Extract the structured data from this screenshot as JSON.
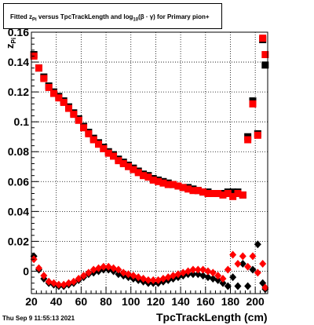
{
  "header": {
    "title_prefix": "Fitted  z",
    "title_sub_pi": "Pi",
    "title_middle": "  versus TpcTrackLength and log",
    "title_sub_10": "10",
    "title_suffix": "(β · γ) for Primary pion+"
  },
  "footer": {
    "timestamp": "Thu Sep  9 11:55:13 2021"
  },
  "colors": {
    "series_black": "#000000",
    "series_red": "#ff0000",
    "grid": "#000000",
    "frame": "#000000"
  },
  "chart_data": {
    "type": "scatter",
    "xlabel": "TpcTrackLength (cm)",
    "ylabel": "z",
    "ylabel_sub": "Pi",
    "xlim": [
      20,
      210
    ],
    "ylim": [
      -0.015,
      0.16
    ],
    "grid": true,
    "xticks": [
      20,
      40,
      60,
      80,
      100,
      120,
      140,
      160,
      180,
      200
    ],
    "yticks": [
      0,
      0.02,
      0.04,
      0.06,
      0.08,
      0.1,
      0.12,
      0.14,
      0.16
    ],
    "ytick_labels": [
      "0",
      "0.02",
      "0.04",
      "0.06",
      "0.08",
      "0.1",
      "0.12",
      "0.14",
      "0.16"
    ],
    "series": [
      {
        "marker": "square",
        "color": "black",
        "points": [
          [
            22,
            0.145
          ],
          [
            26,
            0.136
          ],
          [
            30,
            0.13
          ],
          [
            34,
            0.124
          ],
          [
            38,
            0.12
          ],
          [
            42,
            0.117
          ],
          [
            46,
            0.114
          ],
          [
            50,
            0.11
          ],
          [
            54,
            0.106
          ],
          [
            58,
            0.102
          ],
          [
            62,
            0.097
          ],
          [
            66,
            0.093
          ],
          [
            70,
            0.089
          ],
          [
            74,
            0.086
          ],
          [
            78,
            0.083
          ],
          [
            82,
            0.08
          ],
          [
            86,
            0.078
          ],
          [
            90,
            0.075
          ],
          [
            94,
            0.073
          ],
          [
            98,
            0.071
          ],
          [
            102,
            0.069
          ],
          [
            106,
            0.067
          ],
          [
            110,
            0.065
          ],
          [
            114,
            0.064
          ],
          [
            118,
            0.062
          ],
          [
            122,
            0.061
          ],
          [
            126,
            0.06
          ],
          [
            130,
            0.059
          ],
          [
            134,
            0.058
          ],
          [
            138,
            0.057
          ],
          [
            142,
            0.056
          ],
          [
            146,
            0.056
          ],
          [
            150,
            0.055
          ],
          [
            154,
            0.054
          ],
          [
            158,
            0.053
          ],
          [
            162,
            0.053
          ],
          [
            166,
            0.052
          ],
          [
            170,
            0.052
          ],
          [
            174,
            0.052
          ],
          [
            178,
            0.053
          ],
          [
            182,
            0.053
          ],
          [
            186,
            0.053
          ],
          [
            190,
            0.051
          ],
          [
            194,
            0.09
          ],
          [
            198,
            0.114
          ],
          [
            202,
            0.092
          ],
          [
            206,
            0.155
          ],
          [
            208,
            0.138
          ]
        ]
      },
      {
        "marker": "square",
        "color": "red",
        "points": [
          [
            22,
            0.144
          ],
          [
            26,
            0.136
          ],
          [
            30,
            0.129
          ],
          [
            34,
            0.123
          ],
          [
            38,
            0.119
          ],
          [
            42,
            0.116
          ],
          [
            46,
            0.113
          ],
          [
            50,
            0.109
          ],
          [
            54,
            0.105
          ],
          [
            58,
            0.101
          ],
          [
            62,
            0.096
          ],
          [
            66,
            0.092
          ],
          [
            70,
            0.088
          ],
          [
            74,
            0.085
          ],
          [
            78,
            0.082
          ],
          [
            82,
            0.079
          ],
          [
            86,
            0.077
          ],
          [
            90,
            0.074
          ],
          [
            94,
            0.072
          ],
          [
            98,
            0.07
          ],
          [
            102,
            0.068
          ],
          [
            106,
            0.066
          ],
          [
            110,
            0.064
          ],
          [
            114,
            0.063
          ],
          [
            118,
            0.061
          ],
          [
            122,
            0.06
          ],
          [
            126,
            0.059
          ],
          [
            130,
            0.058
          ],
          [
            134,
            0.058
          ],
          [
            138,
            0.057
          ],
          [
            142,
            0.056
          ],
          [
            146,
            0.055
          ],
          [
            150,
            0.054
          ],
          [
            154,
            0.054
          ],
          [
            158,
            0.053
          ],
          [
            162,
            0.052
          ],
          [
            166,
            0.052
          ],
          [
            170,
            0.052
          ],
          [
            174,
            0.051
          ],
          [
            178,
            0.052
          ],
          [
            182,
            0.05
          ],
          [
            186,
            0.052
          ],
          [
            190,
            0.051
          ],
          [
            194,
            0.088
          ],
          [
            198,
            0.112
          ],
          [
            202,
            0.091
          ],
          [
            206,
            0.156
          ],
          [
            208,
            0.145
          ]
        ]
      },
      {
        "marker": "diamond",
        "color": "black",
        "points": [
          [
            22,
            0.01
          ],
          [
            26,
            0.001
          ],
          [
            30,
            -0.005
          ],
          [
            34,
            -0.008
          ],
          [
            38,
            -0.009
          ],
          [
            42,
            -0.01
          ],
          [
            46,
            -0.01
          ],
          [
            50,
            -0.009
          ],
          [
            54,
            -0.008
          ],
          [
            58,
            -0.006
          ],
          [
            62,
            -0.004
          ],
          [
            66,
            -0.002
          ],
          [
            70,
            -0.001
          ],
          [
            74,
            0
          ],
          [
            78,
            0.001
          ],
          [
            82,
            0.001
          ],
          [
            86,
            0
          ],
          [
            90,
            -0.002
          ],
          [
            94,
            -0.003
          ],
          [
            98,
            -0.004
          ],
          [
            102,
            -0.005
          ],
          [
            106,
            -0.006
          ],
          [
            110,
            -0.007
          ],
          [
            114,
            -0.008
          ],
          [
            118,
            -0.008
          ],
          [
            122,
            -0.008
          ],
          [
            126,
            -0.007
          ],
          [
            130,
            -0.006
          ],
          [
            134,
            -0.005
          ],
          [
            138,
            -0.004
          ],
          [
            142,
            -0.003
          ],
          [
            146,
            -0.002
          ],
          [
            150,
            -0.002
          ],
          [
            154,
            -0.002
          ],
          [
            158,
            -0.003
          ],
          [
            162,
            -0.004
          ],
          [
            166,
            -0.005
          ],
          [
            170,
            -0.006
          ],
          [
            174,
            -0.008
          ],
          [
            178,
            -0.01
          ],
          [
            182,
            -0.004
          ],
          [
            186,
            -0.01
          ],
          [
            190,
            0.005
          ],
          [
            194,
            -0.01
          ],
          [
            198,
            0.001
          ],
          [
            202,
            0.018
          ],
          [
            206,
            -0.008
          ],
          [
            208,
            -0.012
          ]
        ]
      },
      {
        "marker": "diamond",
        "color": "red",
        "points": [
          [
            22,
            0.008
          ],
          [
            26,
            0.002
          ],
          [
            30,
            -0.003
          ],
          [
            34,
            -0.007
          ],
          [
            38,
            -0.008
          ],
          [
            42,
            -0.009
          ],
          [
            46,
            -0.009
          ],
          [
            50,
            -0.008
          ],
          [
            54,
            -0.007
          ],
          [
            58,
            -0.005
          ],
          [
            62,
            -0.003
          ],
          [
            66,
            -0.001
          ],
          [
            70,
            0.001
          ],
          [
            74,
            0.002
          ],
          [
            78,
            0.003
          ],
          [
            82,
            0.003
          ],
          [
            86,
            0.002
          ],
          [
            90,
            0.001
          ],
          [
            94,
            -0.001
          ],
          [
            98,
            -0.002
          ],
          [
            102,
            -0.003
          ],
          [
            106,
            -0.004
          ],
          [
            110,
            -0.005
          ],
          [
            114,
            -0.006
          ],
          [
            118,
            -0.006
          ],
          [
            122,
            -0.006
          ],
          [
            126,
            -0.005
          ],
          [
            130,
            -0.004
          ],
          [
            134,
            -0.003
          ],
          [
            138,
            -0.002
          ],
          [
            142,
            -0.001
          ],
          [
            146,
            0
          ],
          [
            150,
            0.001
          ],
          [
            154,
            0.001
          ],
          [
            158,
            0.001
          ],
          [
            162,
            0
          ],
          [
            166,
            -0.001
          ],
          [
            170,
            -0.003
          ],
          [
            174,
            -0.005
          ],
          [
            178,
            0.001
          ],
          [
            182,
            0.011
          ],
          [
            186,
            0.005
          ],
          [
            190,
            0.01
          ],
          [
            194,
            0.003
          ],
          [
            198,
            0.01
          ],
          [
            202,
            -0.001
          ],
          [
            206,
            0.005
          ],
          [
            208,
            -0.011
          ]
        ]
      }
    ]
  }
}
